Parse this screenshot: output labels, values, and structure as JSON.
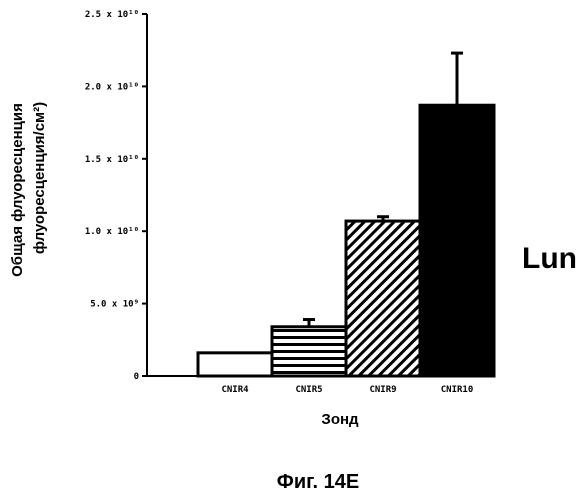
{
  "chart_data": {
    "type": "bar",
    "categories": [
      "CNIR4",
      "CNIR5",
      "CNIR9",
      "CNIR10"
    ],
    "values": [
      1600000000.0,
      3400000000.0,
      10700000000.0,
      18700000000.0
    ],
    "errors": [
      0,
      500000000.0,
      300000000.0,
      3600000000.0
    ],
    "bar_fills": [
      "white",
      "horizontal-stripes",
      "diagonal-hatch",
      "solid-black"
    ],
    "ylim": [
      0,
      25000000000.0
    ],
    "yticks": [
      0,
      5000000000.0,
      10000000000.0,
      15000000000.0,
      20000000000.0,
      25000000000.0
    ],
    "ytick_labels": [
      "0",
      "5.0 x 10⁹",
      "1.0 x 10¹⁰",
      "1.5 x 10¹⁰",
      "2.0 x 10¹⁰",
      "2.5 x 10¹⁰"
    ],
    "ylabel_line1": "Общая флуоресценция",
    "ylabel_line2": "флуоресценция/см²)",
    "xlabel": "Зонд",
    "panel_label": "Lun",
    "grid": false
  },
  "caption": "Фиг. 14E"
}
